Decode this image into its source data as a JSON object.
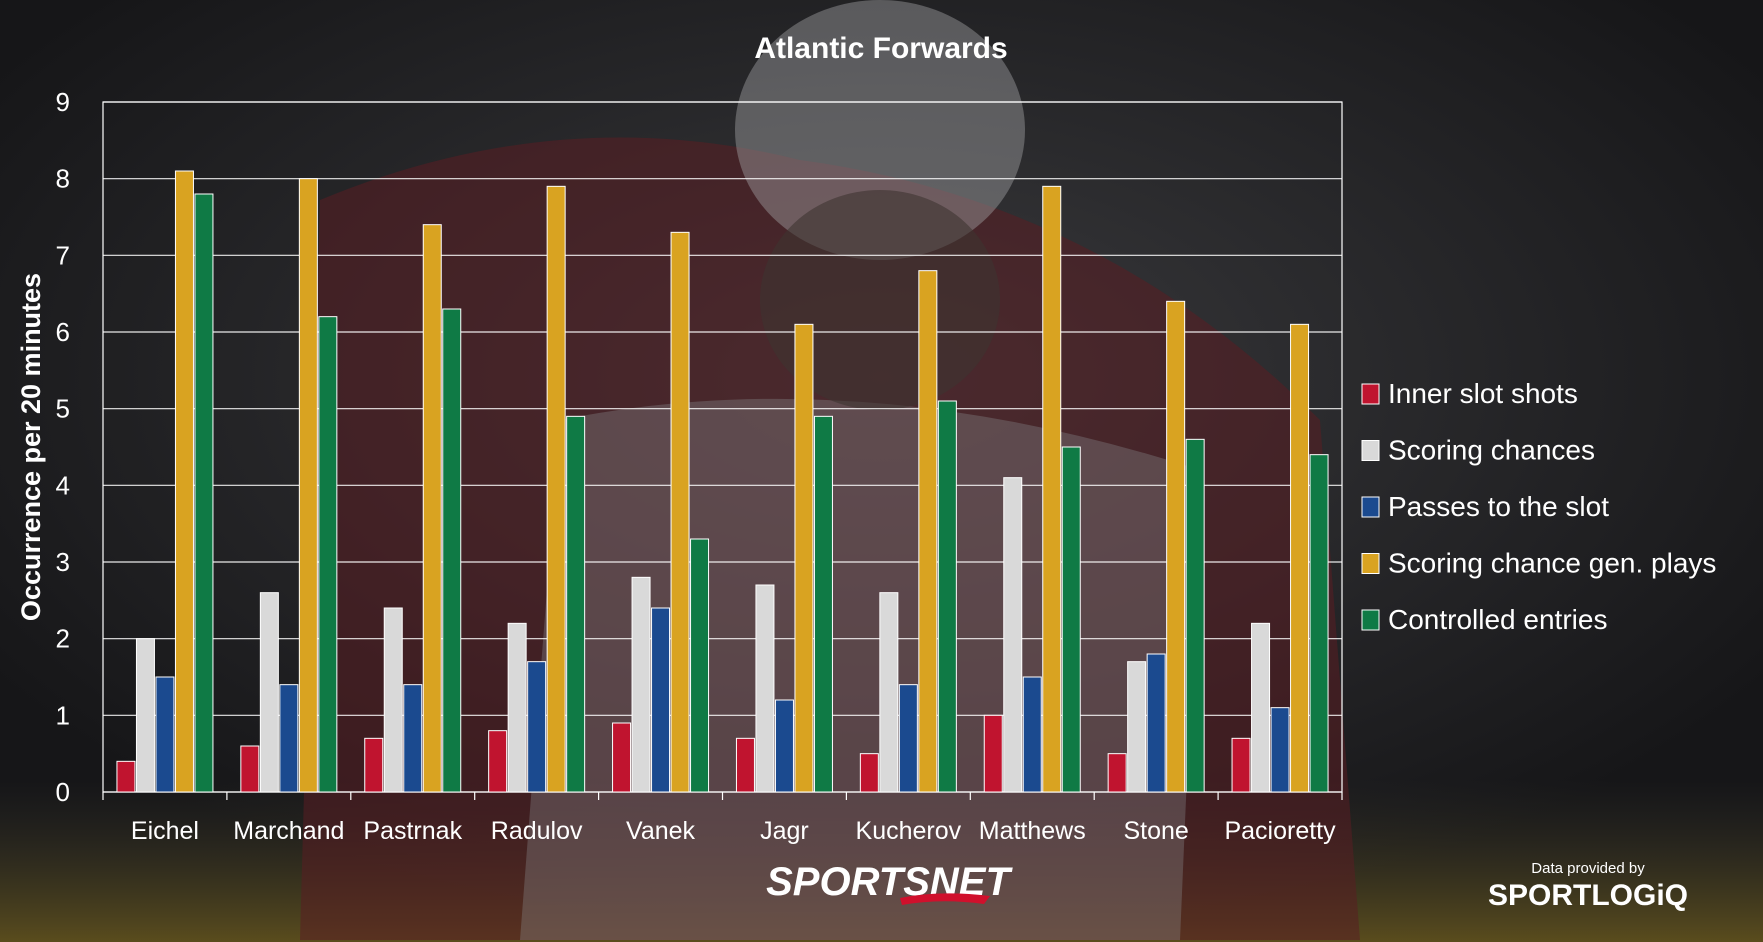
{
  "chart_data": {
    "type": "bar",
    "title": "Atlantic Forwards",
    "ylabel": "Occurrence per 20 minutes",
    "xlabel": "",
    "ylim": [
      0,
      9
    ],
    "yticks": [
      "0",
      "1",
      "2",
      "3",
      "4",
      "5",
      "6",
      "7",
      "8",
      "9"
    ],
    "grid": true,
    "legend_position": "right",
    "categories": [
      "Eichel",
      "Marchand",
      "Pastrnak",
      "Radulov",
      "Vanek",
      "Jagr",
      "Kucherov",
      "Matthews",
      "Stone",
      "Pacioretty"
    ],
    "series": [
      {
        "name": "Inner slot shots",
        "color": "#c0142f",
        "values": [
          0.4,
          0.6,
          0.7,
          0.8,
          0.9,
          0.7,
          0.5,
          1.0,
          0.5,
          0.7
        ]
      },
      {
        "name": "Scoring chances",
        "color": "#d9d9d9",
        "values": [
          2.0,
          2.6,
          2.4,
          2.2,
          2.8,
          2.7,
          2.6,
          4.1,
          1.7,
          2.2
        ]
      },
      {
        "name": "Passes to the slot",
        "color": "#1b4a8f",
        "values": [
          1.5,
          1.4,
          1.4,
          1.7,
          2.4,
          1.2,
          1.4,
          1.5,
          1.8,
          1.1
        ]
      },
      {
        "name": "Scoring chance gen. plays",
        "color": "#d9a321",
        "values": [
          8.1,
          8.0,
          7.4,
          7.9,
          7.3,
          6.1,
          6.8,
          7.9,
          6.4,
          6.1
        ]
      },
      {
        "name": "Controlled entries",
        "color": "#0f7a45",
        "values": [
          7.8,
          6.2,
          6.3,
          4.9,
          3.3,
          4.9,
          5.1,
          4.5,
          4.6,
          4.4
        ]
      }
    ]
  },
  "branding": {
    "logo": "SPORTSNET",
    "credit": "Data provided by",
    "provider": "SPORTLOGiQ"
  }
}
